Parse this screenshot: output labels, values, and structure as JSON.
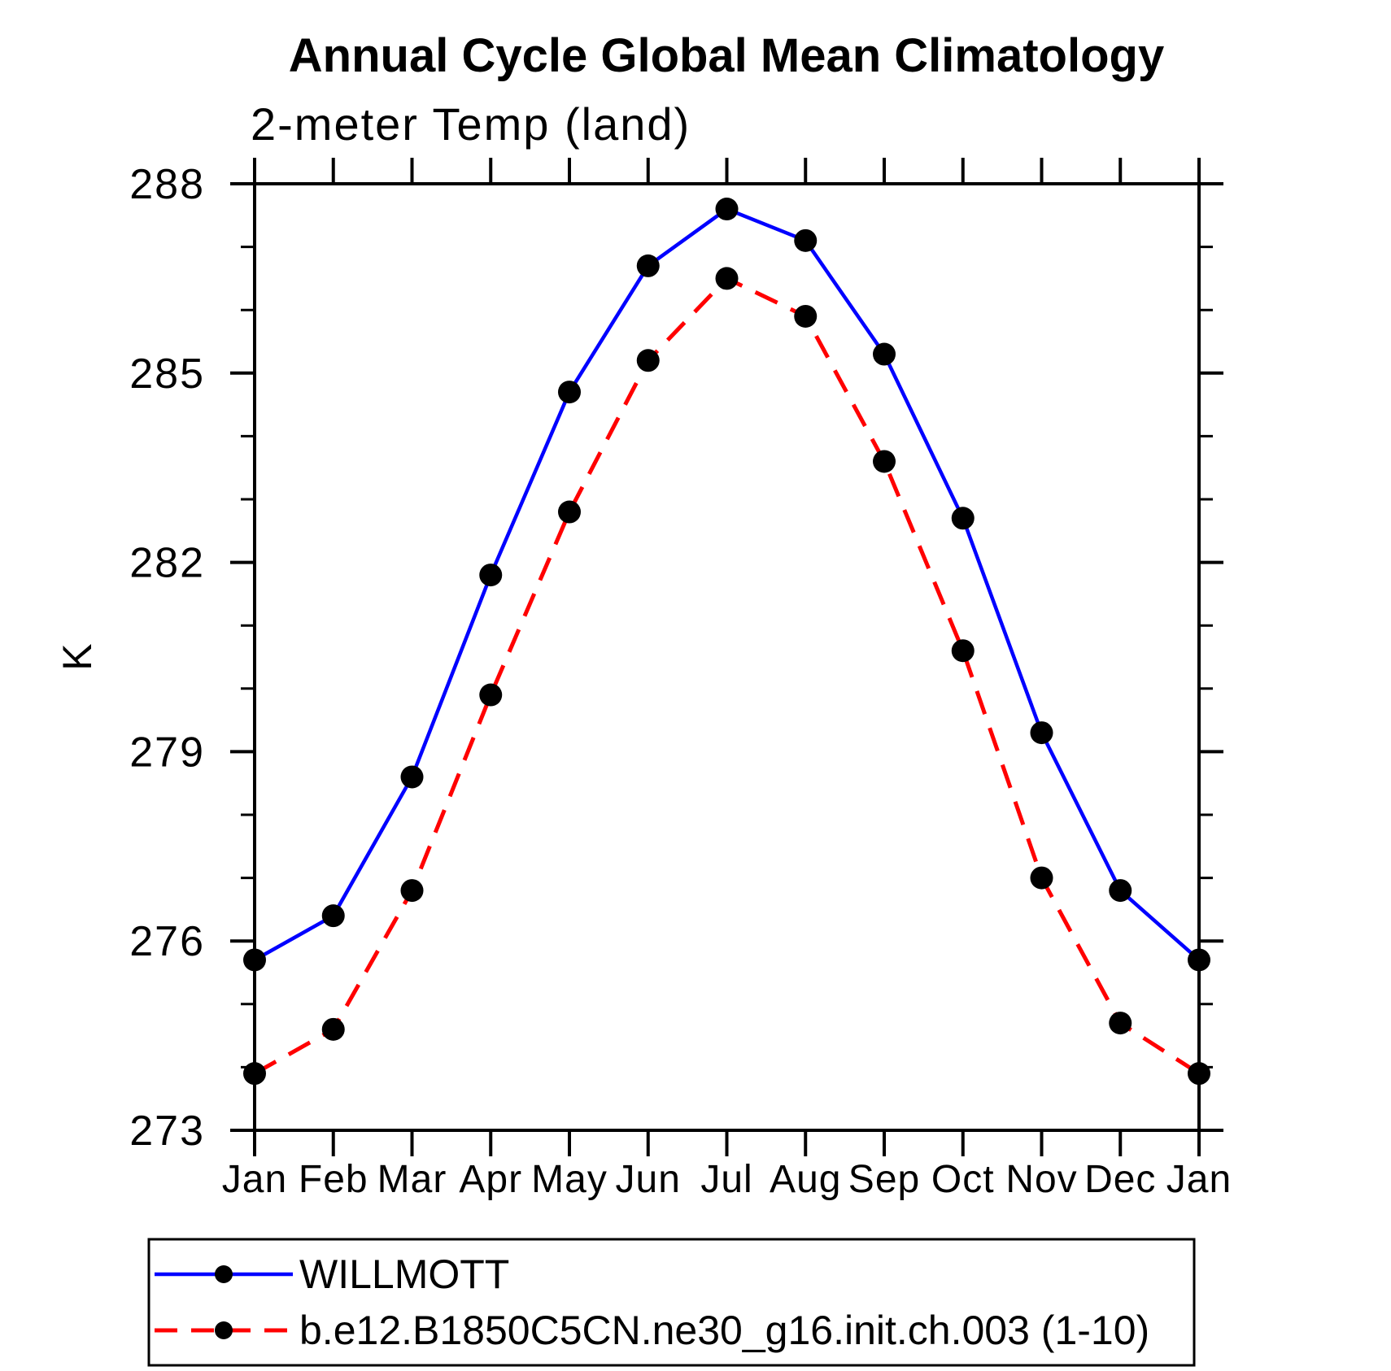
{
  "chart_data": {
    "type": "line",
    "title": "Annual Cycle Global Mean Climatology",
    "subtitle": "2-meter Temp (land)",
    "xlabel": "",
    "ylabel": "K",
    "categories": [
      "Jan",
      "Feb",
      "Mar",
      "Apr",
      "May",
      "Jun",
      "Jul",
      "Aug",
      "Sep",
      "Oct",
      "Nov",
      "Dec",
      "Jan"
    ],
    "ylim": [
      273,
      288
    ],
    "yticks_major": [
      273,
      276,
      279,
      282,
      285,
      288
    ],
    "ytick_minor_step": 1,
    "grid": false,
    "legend_position": "bottom-left-box",
    "marker_color": "#000000",
    "axis_color": "#000000",
    "series": [
      {
        "name": "WILLMOTT",
        "color": "#0000ff",
        "style": "solid",
        "marker": "filled-circle",
        "values": [
          275.7,
          276.4,
          278.6,
          281.8,
          284.7,
          286.7,
          287.6,
          287.1,
          285.3,
          282.7,
          279.3,
          276.8,
          275.7
        ]
      },
      {
        "name": "b.e12.B1850C5CN.ne30_g16.init.ch.003 (1-10)",
        "color": "#ff0000",
        "style": "dashed",
        "marker": "filled-circle",
        "values": [
          273.9,
          274.6,
          276.8,
          279.9,
          282.8,
          285.2,
          286.5,
          285.9,
          283.6,
          280.6,
          277.0,
          274.7,
          273.9
        ]
      }
    ]
  }
}
